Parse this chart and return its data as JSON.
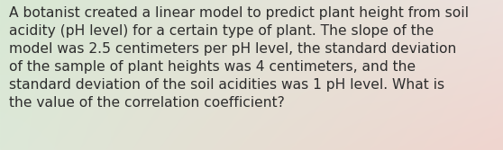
{
  "lines": [
    "A botanist created a linear model to predict plant height from soil",
    "acidity (pH level) for a certain type of plant. The slope of the",
    "model was 2.5 centimeters per pH level, the standard deviation",
    "of the sample of plant heights was 4 centimeters, and the",
    "standard deviation of the soil acidities was 1 pH level. What is",
    "the value of the correlation coefficient?"
  ],
  "text_color": "#2d2d2d",
  "font_size": 11.2,
  "bg_color_top_left": "#d8e8d4",
  "bg_color_top_right": "#ede0dc",
  "bg_color_bot_left": "#dde8d8",
  "bg_color_bot_right": "#f0d5cf",
  "fig_width": 5.58,
  "fig_height": 1.67,
  "dpi": 100
}
